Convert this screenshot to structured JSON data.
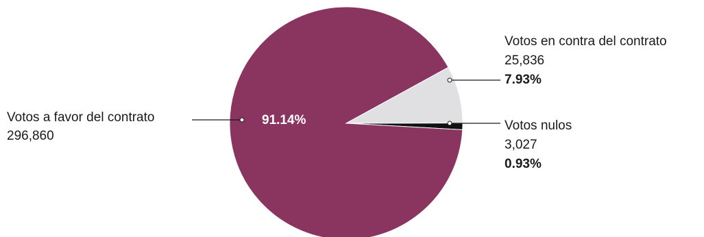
{
  "chart_data": {
    "type": "pie",
    "slices": [
      {
        "label": "Votos a favor del contrato",
        "value": 296860,
        "value_text": "296,860",
        "percent": 91.14,
        "percent_text": "91.14%",
        "color": "#8a3560"
      },
      {
        "label": "Votos en contra del contrato",
        "value": 25836,
        "value_text": "25,836",
        "percent": 7.93,
        "percent_text": "7.93%",
        "color": "#e0e0e2"
      },
      {
        "label": "Votos nulos",
        "value": 3027,
        "value_text": "3,027",
        "percent": 0.93,
        "percent_text": "0.93%",
        "color": "#111111"
      }
    ]
  }
}
